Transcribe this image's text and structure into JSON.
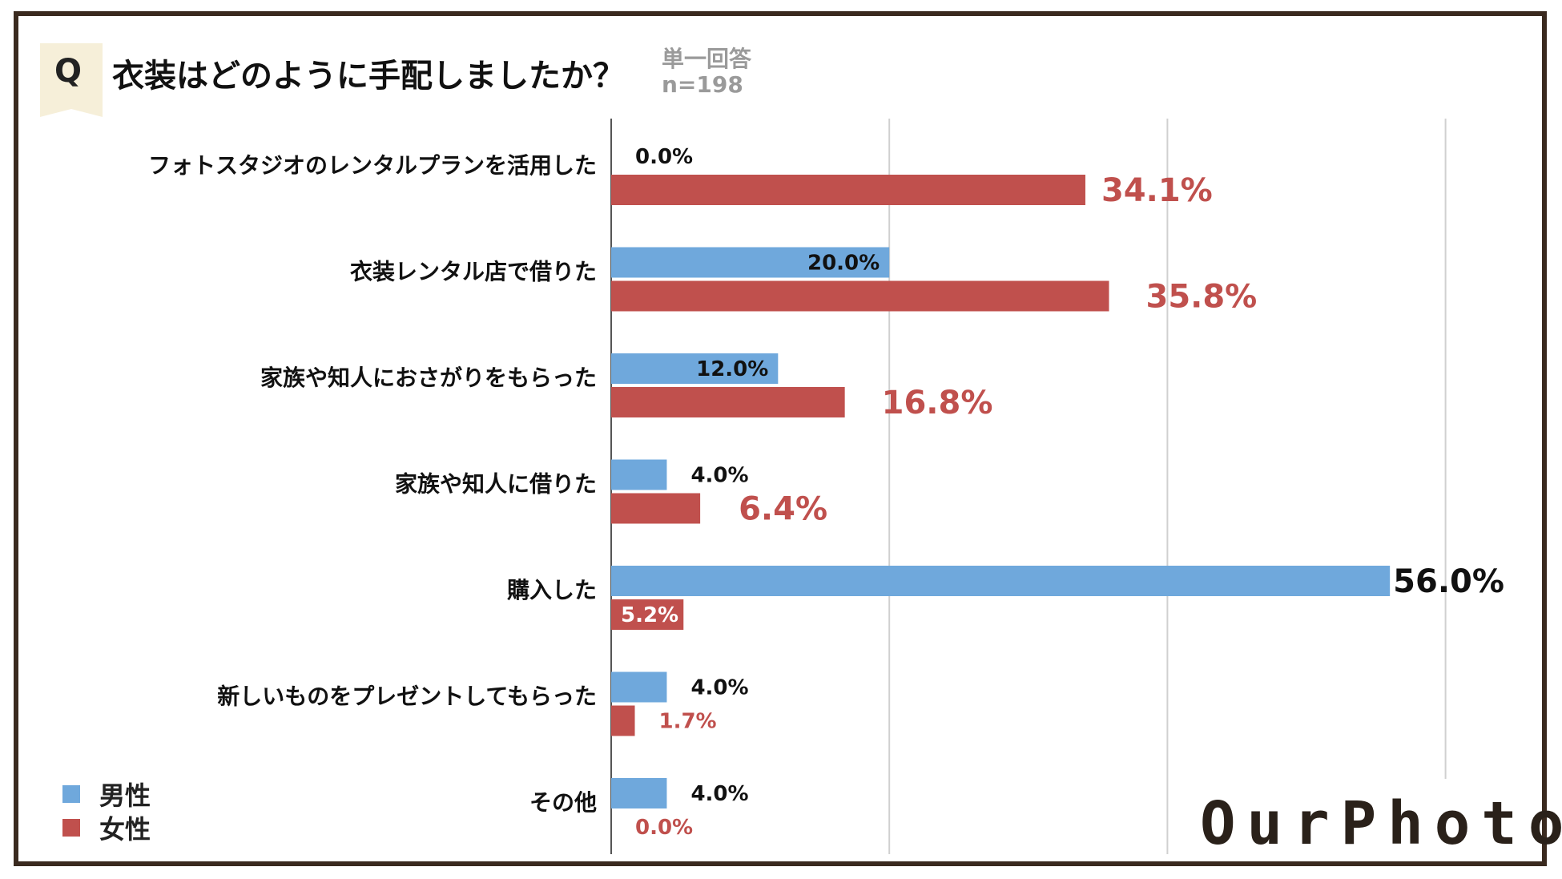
{
  "header": {
    "q_label": "Q",
    "title": "衣装はどのように手配しましたか？",
    "answer_type": "単一回答",
    "sample_size": "n=198"
  },
  "legend": {
    "male": "男性",
    "female": "女性"
  },
  "logo_text": "OurPhoto",
  "colors": {
    "male": "#6fa8dc",
    "female": "#c0504d",
    "frame": "#3a2a1f",
    "grid": "#d0d0d0"
  },
  "chart_data": {
    "type": "bar",
    "orientation": "horizontal",
    "title": "衣装はどのように手配しましたか？",
    "categories": [
      "フォトスタジオのレンタルプランを活用した",
      "衣装レンタル店で借りた",
      "家族や知人におさがりをもらった",
      "家族や知人に借りた",
      "購入した",
      "新しいものをプレゼントしてもらった",
      "その他"
    ],
    "series": [
      {
        "name": "男性",
        "values": [
          0.0,
          20.0,
          12.0,
          4.0,
          56.0,
          4.0,
          4.0
        ],
        "labels": [
          "0.0%",
          "20.0%",
          "12.0%",
          "4.0%",
          "56.0%",
          "4.0%",
          "4.0%"
        ]
      },
      {
        "name": "女性",
        "values": [
          34.1,
          35.8,
          16.8,
          6.4,
          5.2,
          1.7,
          0.0
        ],
        "labels": [
          "34.1%",
          "35.8%",
          "16.8%",
          "6.4%",
          "5.2%",
          "1.7%",
          "0.0%"
        ]
      }
    ],
    "xlim": [
      0,
      60
    ],
    "grid": true,
    "legend_position": "bottom-left"
  }
}
